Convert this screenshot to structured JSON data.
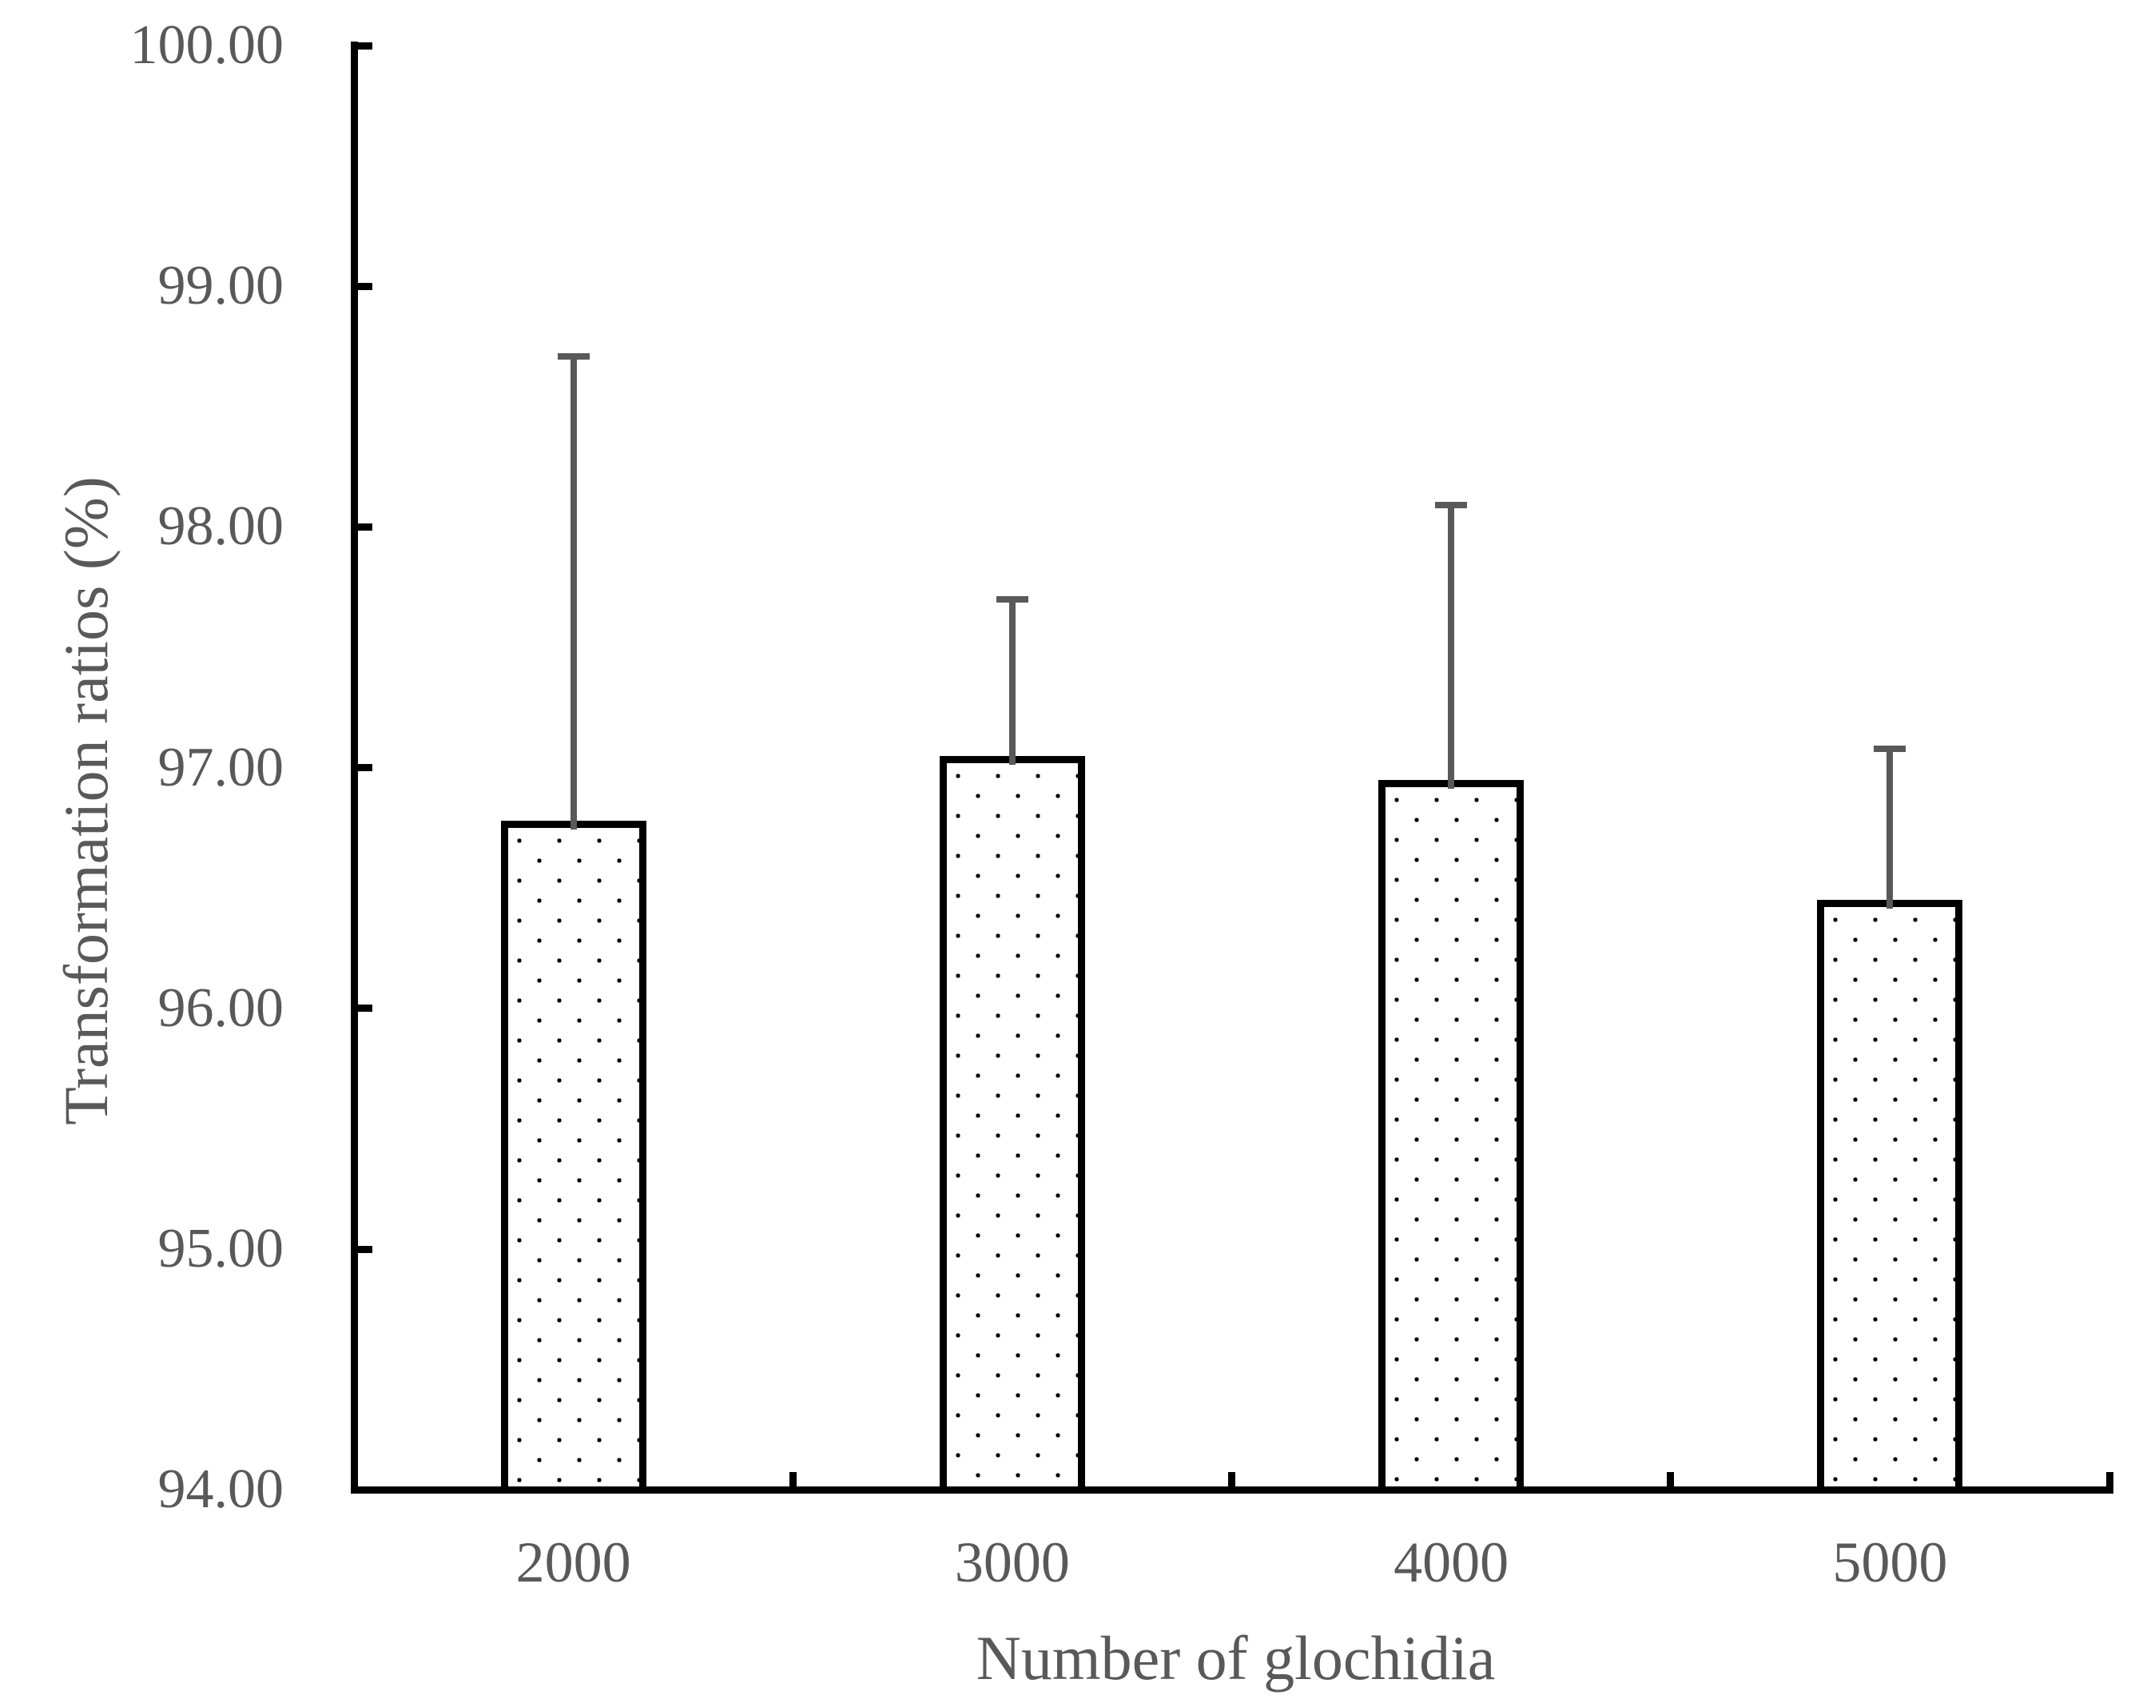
{
  "chart_data": {
    "type": "bar",
    "title": "",
    "xlabel": "Number of glochidia",
    "ylabel": "Transformation ratios (%)",
    "categories": [
      "2000",
      "3000",
      "4000",
      "5000"
    ],
    "series": [
      {
        "name": "Transformation ratio",
        "values": [
          96.78,
          97.05,
          96.95,
          96.45
        ],
        "error_plus": [
          1.93,
          0.65,
          1.14,
          0.63
        ],
        "error_top_values": [
          98.71,
          97.7,
          98.09,
          97.08
        ]
      }
    ],
    "ylim": [
      94,
      100
    ],
    "ytick_step": 1,
    "ytick_labels": [
      "94.00",
      "95.00",
      "96.00",
      "97.00",
      "98.00",
      "99.00",
      "100.00"
    ],
    "grid": false,
    "legend_position": "none",
    "bar_fill": "#ffffff",
    "bar_pattern": "staggered-black-square-dots",
    "bar_border_color": "#000000",
    "error_bar_color": "#595959",
    "axis_color": "#000000",
    "text_color": "#595959",
    "background": "#ffffff"
  }
}
